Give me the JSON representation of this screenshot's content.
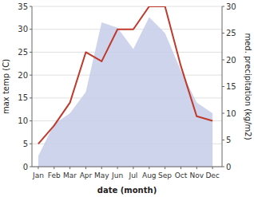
{
  "chart_data": {
    "type": "line",
    "xlabel": "date (month)",
    "ylabel": "max temp (C)",
    "y2label": "med. precipitation (kg/m2)",
    "categories": [
      "Jan",
      "Feb",
      "Mar",
      "Apr",
      "May",
      "Jun",
      "Jul",
      "Aug",
      "Sep",
      "Oct",
      "Nov",
      "Dec"
    ],
    "series": [
      {
        "type": "area",
        "axis": "y2",
        "color": "#c5cce8",
        "values": [
          2,
          8,
          10,
          14,
          27,
          26,
          22,
          28,
          25,
          18,
          12,
          10
        ]
      },
      {
        "type": "line",
        "color": "#c0392b",
        "values": [
          5,
          9,
          14,
          25,
          23,
          30,
          30,
          35,
          35,
          22,
          11,
          10
        ]
      }
    ],
    "ylim": [
      0,
      35
    ],
    "yticks": [
      0,
      5,
      10,
      15,
      20,
      25,
      30,
      35
    ],
    "y2lim": [
      0,
      30
    ],
    "y2ticks": [
      0,
      5,
      10,
      15,
      20,
      25,
      30
    ],
    "grid": true
  }
}
